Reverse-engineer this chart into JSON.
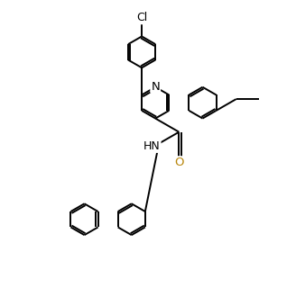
{
  "bg_color": "#ffffff",
  "line_color": "#000000",
  "o_color": "#b8860b",
  "lw": 1.4,
  "figsize": [
    3.28,
    3.3
  ],
  "dpi": 100,
  "xlim": [
    0,
    10
  ],
  "ylim": [
    0,
    10
  ]
}
